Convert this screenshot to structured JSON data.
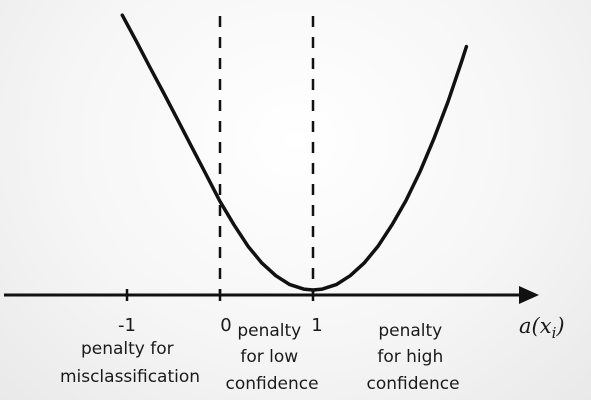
{
  "colors": {
    "curve": "#111111",
    "axis": "#111111",
    "guide": "#111111"
  },
  "chart_data": {
    "type": "line",
    "title": "",
    "xlabel": "a(x_i)",
    "xlabel_base": "a(x",
    "xlabel_sub": "i",
    "xlabel_close": ")",
    "ylabel": "",
    "grid": false,
    "legend": "none",
    "xlim": [
      -2.0,
      3.1
    ],
    "ylim": [
      0,
      3.1
    ],
    "x_ticks": [
      {
        "value": -1,
        "label": "-1"
      },
      {
        "value": 0,
        "label": "0"
      },
      {
        "value": 1,
        "label": "1"
      }
    ],
    "guide_lines": [
      {
        "x": 0,
        "style": "dashed"
      },
      {
        "x": 1,
        "style": "dashed"
      }
    ],
    "series": [
      {
        "x": [
          -1.05,
          -0.9,
          -0.75,
          -0.6,
          -0.45,
          -0.3,
          -0.15,
          0,
          0.15,
          0.3,
          0.45,
          0.6,
          0.75,
          0.9,
          1.0,
          1.1,
          1.25,
          1.4,
          1.55,
          1.7,
          1.85,
          2.0,
          2.15,
          2.3,
          2.45,
          2.6,
          2.65
        ],
        "y": [
          3.07,
          2.78,
          2.48,
          2.19,
          1.89,
          1.59,
          1.29,
          0.99,
          0.73,
          0.49,
          0.3,
          0.16,
          0.06,
          0.01,
          0.0,
          0.01,
          0.06,
          0.16,
          0.3,
          0.49,
          0.73,
          1.0,
          1.32,
          1.69,
          2.1,
          2.56,
          2.72
        ]
      }
    ],
    "annotations": [
      {
        "lines": [
          "penalty for",
          "misclassification"
        ]
      },
      {
        "lines": [
          "penalty",
          "for low",
          "confidence"
        ]
      },
      {
        "lines": [
          "penalty",
          "for high",
          "confidence"
        ]
      }
    ]
  }
}
